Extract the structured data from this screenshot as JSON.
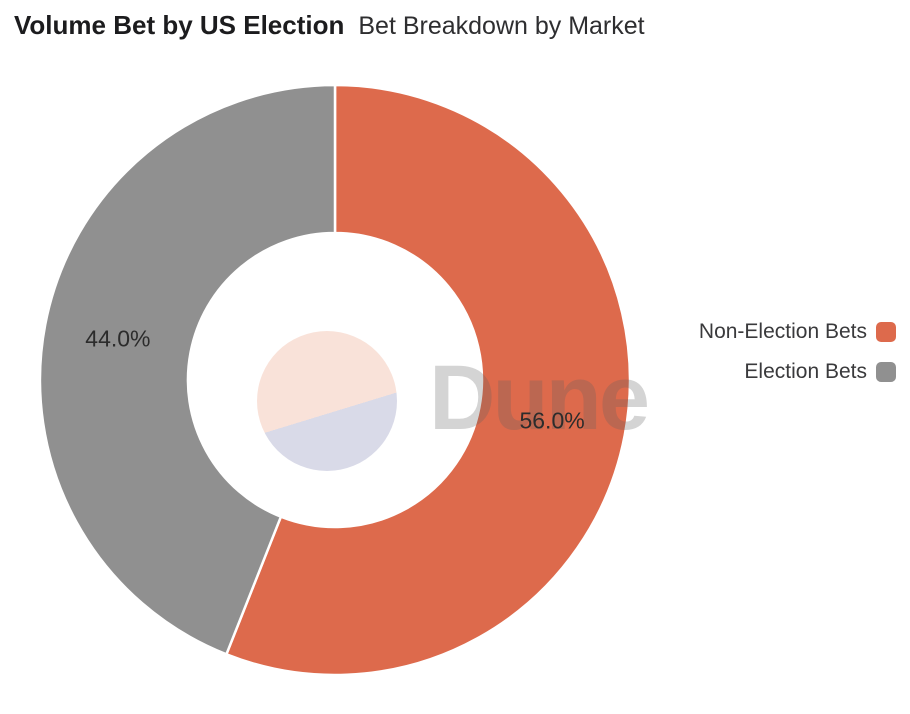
{
  "header": {
    "title": "Volume Bet by US Election",
    "subtitle": "Bet Breakdown by Market"
  },
  "watermark_text": "Dune",
  "logo": {
    "name": "dune-logo",
    "top_color": "#f9e2d9",
    "bottom_color": "#d9dae8"
  },
  "chart_data": {
    "type": "pie",
    "donut": true,
    "title": "Volume Bet by US Election",
    "subtitle": "Bet Breakdown by Market",
    "start_angle_deg": 0,
    "direction": "clockwise",
    "legend_position": "right",
    "separator_color": "#ffffff",
    "slices": [
      {
        "name": "Non-Election Bets",
        "value_pct": 56.0,
        "label": "56.0%",
        "color": "#dd6a4c"
      },
      {
        "name": "Election Bets",
        "value_pct": 44.0,
        "label": "44.0%",
        "color": "#909090"
      }
    ]
  }
}
